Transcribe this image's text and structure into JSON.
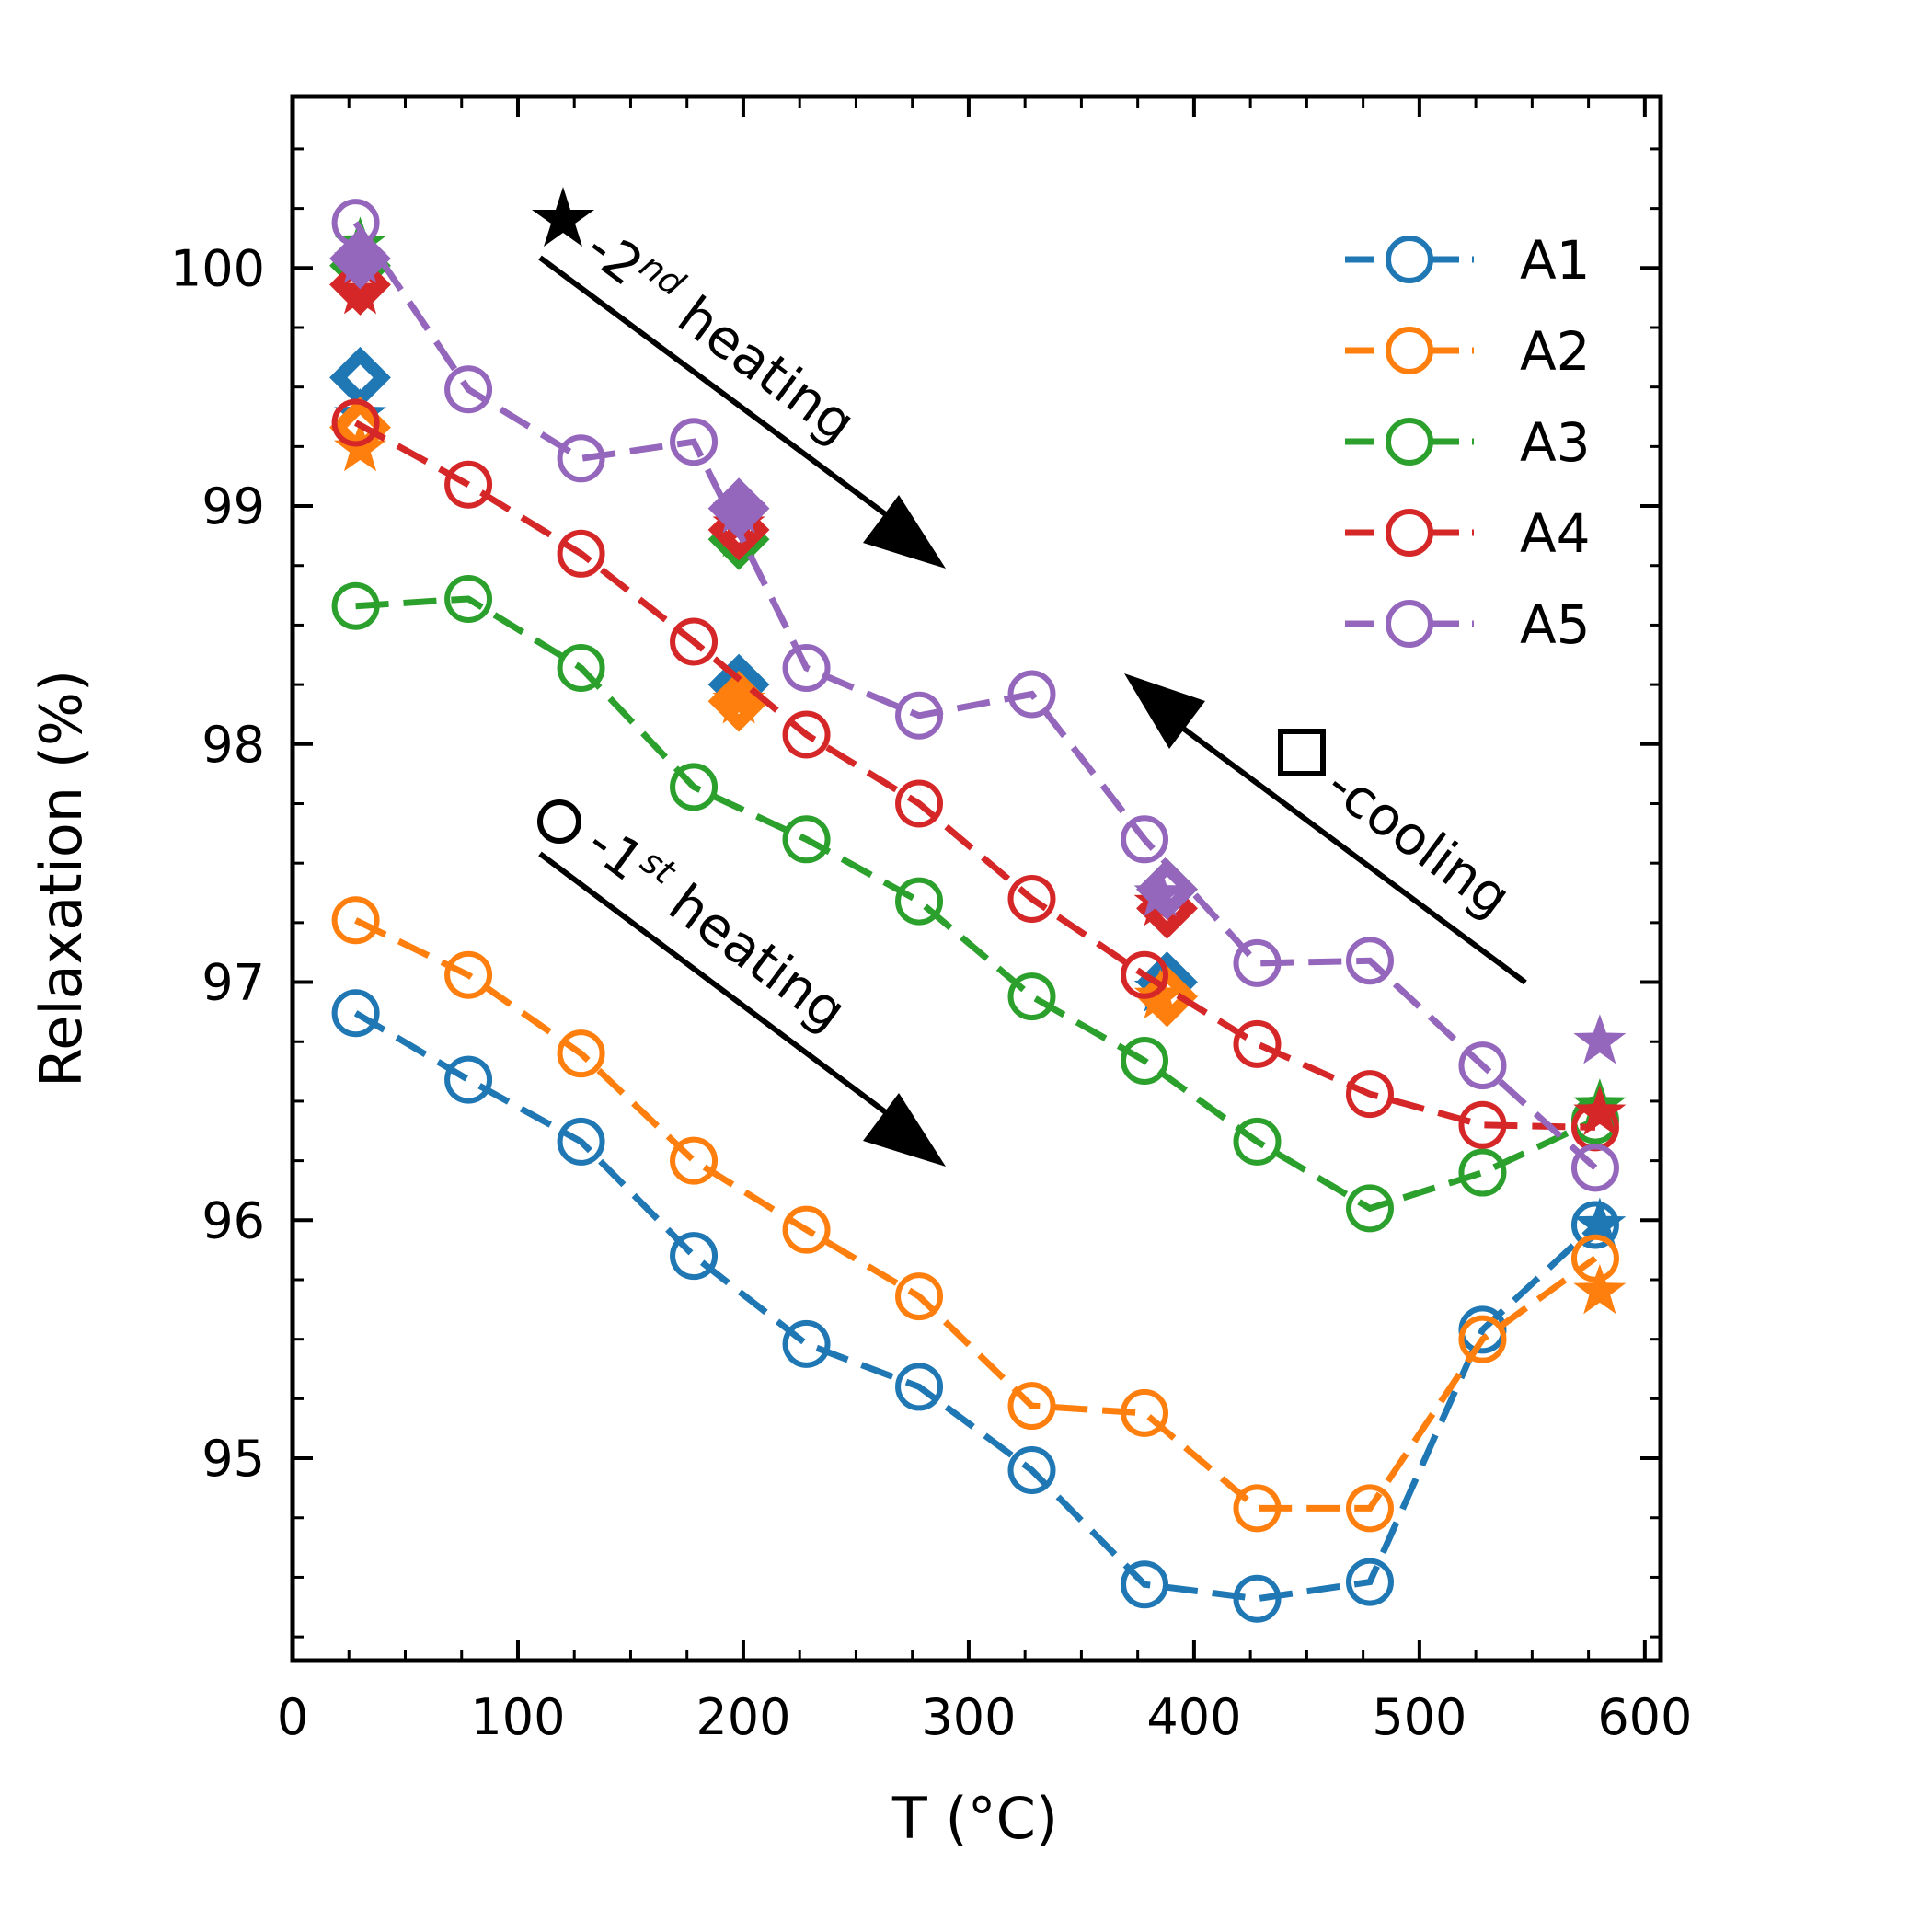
{
  "chart_data": {
    "type": "line",
    "xlabel": "T (°C)",
    "ylabel": "Relaxation (%)",
    "xlim": [
      0,
      607
    ],
    "ylim": [
      94.15,
      100.72
    ],
    "xticks": [
      0,
      100,
      200,
      300,
      400,
      500,
      600
    ],
    "yticks": [
      95,
      96,
      97,
      98,
      99,
      100
    ],
    "grid": false,
    "legend_position": "top-right",
    "colors": {
      "A1": "#1f77b4",
      "A2": "#ff7f0e",
      "A3": "#2ca02c",
      "A4": "#d62728",
      "A5": "#9467bd"
    },
    "x": [
      28,
      78,
      128,
      178,
      228,
      278,
      328,
      378,
      428,
      478,
      528,
      578
    ],
    "series": [
      {
        "name": "A1",
        "first_heating": [
          96.87,
          96.59,
          96.33,
          95.85,
          95.48,
          95.3,
          94.95,
          94.47,
          94.41,
          94.48,
          95.54,
          95.98
        ],
        "cooling": [
          [
            30,
            99.54
          ],
          [
            198,
            98.25
          ],
          [
            388,
            97.0
          ]
        ],
        "second_heating": [
          [
            30,
            99.38
          ],
          [
            198,
            98.22
          ],
          [
            385,
            96.97
          ],
          [
            580,
            95.98
          ]
        ]
      },
      {
        "name": "A2",
        "first_heating": [
          97.26,
          97.03,
          96.7,
          96.25,
          95.96,
          95.68,
          95.22,
          95.19,
          94.79,
          94.79,
          95.5,
          95.84
        ],
        "cooling": [
          [
            30,
            99.33
          ],
          [
            198,
            98.18
          ],
          [
            388,
            96.94
          ]
        ],
        "second_heating": [
          [
            30,
            99.24
          ],
          [
            198,
            98.18
          ],
          [
            385,
            96.94
          ],
          [
            580,
            95.7
          ]
        ]
      },
      {
        "name": "A3",
        "first_heating": [
          98.58,
          98.61,
          98.32,
          97.82,
          97.6,
          97.34,
          96.94,
          96.67,
          96.33,
          96.05,
          96.2,
          96.42
        ],
        "cooling": [
          [
            30,
            100.01
          ],
          [
            198,
            98.86
          ],
          [
            388,
            97.39
          ]
        ],
        "second_heating": [
          [
            30,
            100.1
          ],
          [
            198,
            98.88
          ],
          [
            385,
            97.37
          ],
          [
            580,
            96.48
          ]
        ]
      },
      {
        "name": "A4",
        "first_heating": [
          99.35,
          99.09,
          98.8,
          98.43,
          98.04,
          97.75,
          97.35,
          97.03,
          96.74,
          96.53,
          96.4,
          96.39
        ],
        "cooling": [
          [
            30,
            99.93
          ],
          [
            198,
            98.9
          ],
          [
            388,
            97.31
          ]
        ],
        "second_heating": [
          [
            30,
            99.9
          ],
          [
            198,
            98.92
          ],
          [
            385,
            97.33
          ],
          [
            580,
            96.45
          ]
        ]
      },
      {
        "name": "A5",
        "first_heating": [
          100.19,
          99.49,
          99.2,
          99.27,
          98.32,
          98.12,
          98.21,
          97.6,
          97.08,
          97.09,
          96.65,
          96.22
        ],
        "cooling": [
          [
            30,
            100.04
          ],
          [
            198,
            98.99
          ],
          [
            388,
            97.39
          ]
        ],
        "second_heating": [
          [
            30,
            100.03
          ],
          [
            198,
            98.98
          ],
          [
            385,
            97.37
          ],
          [
            580,
            96.75
          ]
        ]
      }
    ],
    "annotations": {
      "second_heating": {
        "base": "-2",
        "sup": "nd",
        "rest": " heating"
      },
      "first_heating": {
        "base": "-1",
        "sup": "st",
        "rest": " heating"
      },
      "cooling": "-cooling"
    }
  }
}
